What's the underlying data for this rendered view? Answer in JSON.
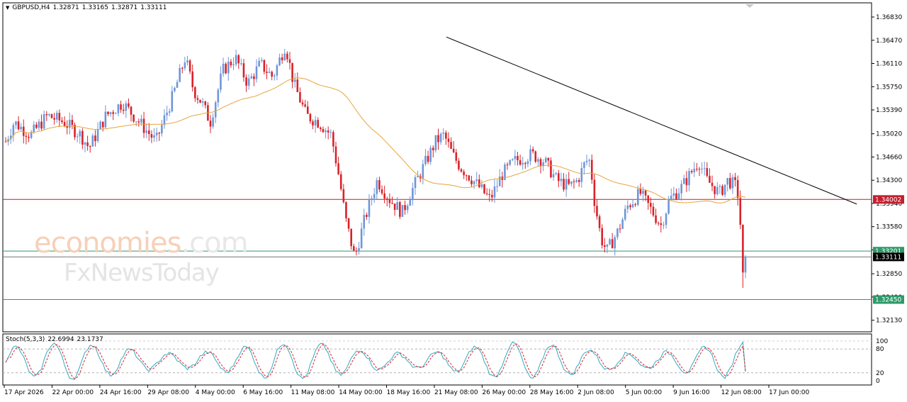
{
  "header": {
    "symbol": "GBPUSD,H4",
    "open": "1.32871",
    "high": "1.33165",
    "low": "1.32871",
    "close": "1.33111"
  },
  "watermark": {
    "brand_main": "economies",
    "brand_suffix": ".com",
    "brand_sub": "FxNewsToday"
  },
  "colors": {
    "bull": "#6f96d8",
    "bear": "#d8222a",
    "ma": "#e8a43c",
    "trendline": "#000000",
    "resistance": "#c41e2e",
    "support": "#2e9a6a",
    "last_price": "#000000",
    "stoch_main": "#34a8c0",
    "stoch_signal": "#d8222a"
  },
  "chart_data": {
    "type": "candlestick",
    "title": "GBPUSD,H4",
    "y_ticks": [
      "1.36830",
      "1.36470",
      "1.36110",
      "1.35750",
      "1.35390",
      "1.35020",
      "1.34660",
      "1.34300",
      "1.33940",
      "1.33580",
      "1.33220",
      "1.32850",
      "1.32490",
      "1.32130"
    ],
    "ylim": [
      1.3195,
      1.3705
    ],
    "x_ticks": [
      "17 Apr 2026",
      "22 Apr 00:00",
      "24 Apr 16:00",
      "29 Apr 08:00",
      "4 May 00:00",
      "6 May 16:00",
      "11 May 08:00",
      "14 May 00:00",
      "18 May 16:00",
      "21 May 08:00",
      "26 May 00:00",
      "28 May 16:00",
      "2 Jun 08:00",
      "5 Jun 00:00",
      "9 Jun 16:00",
      "12 Jun 08:00",
      "17 Jun 00:00"
    ],
    "price_levels": [
      {
        "label": "1.34002",
        "value": 1.34002,
        "kind": "resistance"
      },
      {
        "label": "1.33201",
        "value": 1.33201,
        "kind": "support"
      },
      {
        "label": "1.33111",
        "value": 1.33111,
        "kind": "last"
      },
      {
        "label": "1.32450",
        "value": 1.3245,
        "kind": "support"
      }
    ],
    "trendline": {
      "from": [
        0.5105,
        1.3652
      ],
      "to": [
        0.983,
        1.3393
      ]
    },
    "path_anchors": [
      [
        0,
        1.349
      ],
      [
        0.01,
        1.352
      ],
      [
        0.03,
        1.35
      ],
      [
        0.05,
        1.353
      ],
      [
        0.07,
        1.352
      ],
      [
        0.09,
        1.35
      ],
      [
        0.1,
        1.348
      ],
      [
        0.12,
        1.353
      ],
      [
        0.14,
        1.355
      ],
      [
        0.16,
        1.352
      ],
      [
        0.18,
        1.349
      ],
      [
        0.2,
        1.356
      ],
      [
        0.215,
        1.362
      ],
      [
        0.225,
        1.357
      ],
      [
        0.235,
        1.355
      ],
      [
        0.245,
        1.352
      ],
      [
        0.26,
        1.36
      ],
      [
        0.275,
        1.362
      ],
      [
        0.29,
        1.358
      ],
      [
        0.305,
        1.361
      ],
      [
        0.32,
        1.359
      ],
      [
        0.335,
        1.364
      ],
      [
        0.345,
        1.358
      ],
      [
        0.36,
        1.353
      ],
      [
        0.375,
        1.352
      ],
      [
        0.39,
        1.35
      ],
      [
        0.4,
        1.343
      ],
      [
        0.407,
        1.337
      ],
      [
        0.418,
        1.331
      ],
      [
        0.43,
        1.337
      ],
      [
        0.445,
        1.343
      ],
      [
        0.46,
        1.34
      ],
      [
        0.475,
        1.338
      ],
      [
        0.485,
        1.341
      ],
      [
        0.5,
        1.345
      ],
      [
        0.515,
        1.349
      ],
      [
        0.525,
        1.35
      ],
      [
        0.535,
        1.347
      ],
      [
        0.545,
        1.345
      ],
      [
        0.56,
        1.343
      ],
      [
        0.58,
        1.34
      ],
      [
        0.595,
        1.344
      ],
      [
        0.61,
        1.346
      ],
      [
        0.63,
        1.347
      ],
      [
        0.645,
        1.346
      ],
      [
        0.66,
        1.343
      ],
      [
        0.675,
        1.342
      ],
      [
        0.685,
        1.343
      ],
      [
        0.695,
        1.346
      ],
      [
        0.7,
        1.346
      ],
      [
        0.705,
        1.34
      ],
      [
        0.713,
        1.334
      ],
      [
        0.72,
        1.332
      ],
      [
        0.733,
        1.335
      ],
      [
        0.745,
        1.339
      ],
      [
        0.76,
        1.341
      ],
      [
        0.775,
        1.338
      ],
      [
        0.785,
        1.336
      ],
      [
        0.795,
        1.34
      ],
      [
        0.81,
        1.342
      ],
      [
        0.82,
        1.344
      ],
      [
        0.83,
        1.346
      ],
      [
        0.84,
        1.343
      ],
      [
        0.855,
        1.341
      ],
      [
        0.865,
        1.343
      ],
      [
        0.875,
        1.342
      ],
      [
        0.878,
        1.34
      ],
      [
        0.88,
        1.336
      ],
      [
        0.881,
        1.329
      ],
      [
        0.886,
        1.3311
      ]
    ],
    "stochastic": {
      "label": "Stoch(5,3,3)",
      "main": "22.6994",
      "signal": "23.1737",
      "levels": [
        "100",
        "80",
        "20",
        "0"
      ]
    }
  }
}
